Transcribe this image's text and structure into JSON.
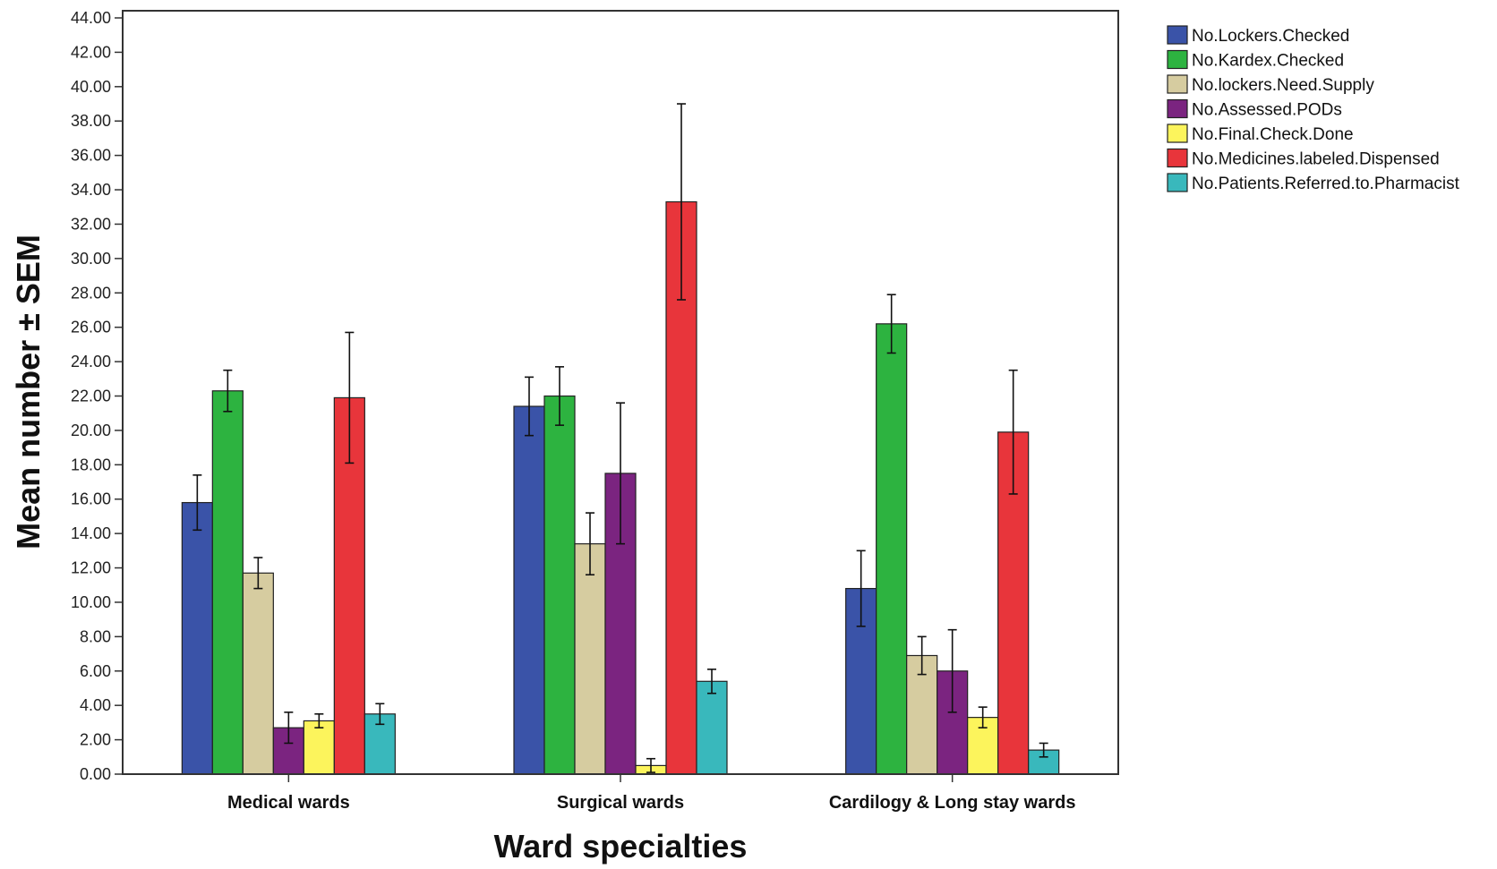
{
  "chart_data": {
    "type": "bar",
    "title": "",
    "xlabel": "Ward specialties",
    "ylabel": "Mean number ± SEM",
    "ylim": [
      0,
      44
    ],
    "y_ticks": [
      "0.00",
      "2.00",
      "4.00",
      "6.00",
      "8.00",
      "10.00",
      "12.00",
      "14.00",
      "16.00",
      "18.00",
      "20.00",
      "22.00",
      "24.00",
      "26.00",
      "28.00",
      "30.00",
      "32.00",
      "34.00",
      "36.00",
      "38.00",
      "40.00",
      "42.00",
      "44.00"
    ],
    "categories": [
      "Medical wards",
      "Surgical wards",
      "Cardilogy & Long stay wards"
    ],
    "legend_position": "top-right",
    "grid": false,
    "series": [
      {
        "name": "No.Lockers.Checked",
        "color": "#3a53a8",
        "values": [
          15.8,
          21.4,
          10.8
        ],
        "errors": [
          1.6,
          1.7,
          2.2
        ]
      },
      {
        "name": "No.Kardex.Checked",
        "color": "#2db340",
        "values": [
          22.3,
          22.0,
          26.2
        ],
        "errors": [
          1.2,
          1.7,
          1.7
        ]
      },
      {
        "name": "No.lockers.Need.Supply",
        "color": "#d6cca0",
        "values": [
          11.7,
          13.4,
          6.9
        ],
        "errors": [
          0.9,
          1.8,
          1.1
        ]
      },
      {
        "name": "No.Assessed.PODs",
        "color": "#7b2480",
        "values": [
          2.7,
          17.5,
          6.0
        ],
        "errors": [
          0.9,
          4.1,
          2.4
        ]
      },
      {
        "name": "No.Final.Check.Done",
        "color": "#fcf45c",
        "values": [
          3.1,
          0.5,
          3.3
        ],
        "errors": [
          0.4,
          0.4,
          0.6
        ]
      },
      {
        "name": "No.Medicines.labeled.Dispensed",
        "color": "#e8353b",
        "values": [
          21.9,
          33.3,
          19.9
        ],
        "errors": [
          3.8,
          5.7,
          3.6
        ]
      },
      {
        "name": "No.Patients.Referred.to.Pharmacist",
        "color": "#39b8bc",
        "values": [
          3.5,
          5.4,
          1.4
        ],
        "errors": [
          0.6,
          0.7,
          0.4
        ]
      }
    ]
  }
}
